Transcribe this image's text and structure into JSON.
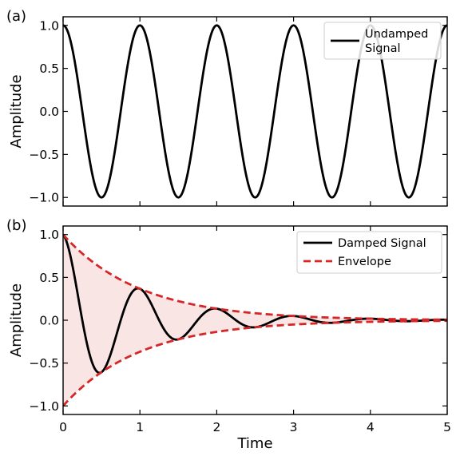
{
  "chart_data": [
    {
      "panel_label": "(a)",
      "type": "line",
      "x_range": [
        0,
        5
      ],
      "ylim": [
        -1.1,
        1.1
      ],
      "xlabel": "",
      "ylabel": "Amplitude",
      "x_ticks": [
        0,
        1,
        2,
        3,
        4,
        5
      ],
      "y_ticks": [
        {
          "value": -1.0,
          "label": "−1.0"
        },
        {
          "value": -0.5,
          "label": "−0.5"
        },
        {
          "value": 0.0,
          "label": "0.0"
        },
        {
          "value": 0.5,
          "label": "0.5"
        },
        {
          "value": 1.0,
          "label": "1.0"
        }
      ],
      "x_tick_labels_visible": false,
      "grid": false,
      "legend_position": "top-right",
      "legend": [
        {
          "label_lines": [
            "Undamped",
            "Signal"
          ],
          "color": "#000000",
          "style": "solid"
        }
      ],
      "series": [
        {
          "name": "Undamped Signal",
          "function": "cos(2*pi*t)",
          "color": "#000000",
          "style": "solid"
        }
      ]
    },
    {
      "panel_label": "(b)",
      "type": "line",
      "x_range": [
        0,
        5
      ],
      "ylim": [
        -1.1,
        1.1
      ],
      "xlabel": "Time",
      "ylabel": "Amplitude",
      "x_ticks": [
        {
          "value": 0,
          "label": "0"
        },
        {
          "value": 1,
          "label": "1"
        },
        {
          "value": 2,
          "label": "2"
        },
        {
          "value": 3,
          "label": "3"
        },
        {
          "value": 4,
          "label": "4"
        },
        {
          "value": 5,
          "label": "5"
        }
      ],
      "y_ticks": [
        {
          "value": -1.0,
          "label": "−1.0"
        },
        {
          "value": -0.5,
          "label": "−0.5"
        },
        {
          "value": 0.0,
          "label": "0.0"
        },
        {
          "value": 0.5,
          "label": "0.5"
        },
        {
          "value": 1.0,
          "label": "1.0"
        }
      ],
      "x_tick_labels_visible": true,
      "grid": false,
      "legend_position": "top-right",
      "legend": [
        {
          "label_lines": [
            "Damped Signal"
          ],
          "color": "#000000",
          "style": "solid"
        },
        {
          "label_lines": [
            "Envelope"
          ],
          "color": "#d62728",
          "style": "dashed"
        }
      ],
      "series": [
        {
          "name": "Damped Signal",
          "function": "exp(-t)*cos(2*pi*t)",
          "color": "#000000",
          "style": "solid"
        },
        {
          "name": "Envelope",
          "function": "±exp(-t)",
          "color": "#d62728",
          "style": "dashed"
        }
      ],
      "fill_between_envelope": {
        "color": "#d62728",
        "opacity": 0.12
      }
    }
  ]
}
